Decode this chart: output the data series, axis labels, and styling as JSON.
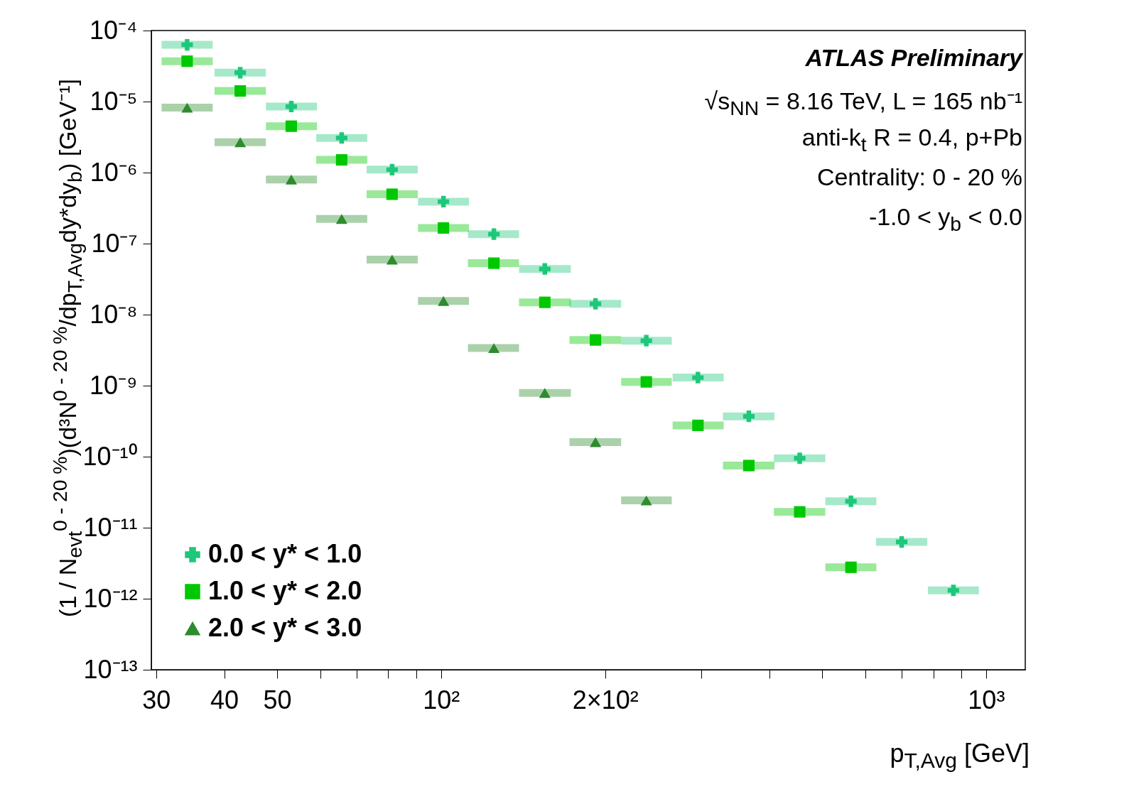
{
  "chart_data": {
    "type": "scatter",
    "xlabel": "p$_{T,Avg}$ [GeV]",
    "ylabel": "(1 / N$_{evt}$$^{0 - 20 %}$)(d³N$^{0 - 20 %}$/dp$_{T,Avg}$dy*dy$_{b}$) [GeV⁻¹]",
    "annotations": [
      "ATLAS Preliminary",
      "√s$_{NN}$ = 8.16 TeV, L = 165 nb⁻¹",
      "anti-k$_{t}$ R = 0.4, p+Pb",
      "Centrality: 0 - 20 %",
      "-1.0 < y$_{b}$ < 0.0"
    ],
    "log": "xy",
    "grid": false,
    "legend": "bottom left",
    "x": [
      34.2,
      42.8,
      53.1,
      65.7,
      81.3,
      101,
      125,
      155,
      192,
      238,
      296,
      367,
      455,
      565,
      700,
      871
    ],
    "xlim": [
      29.4,
      1180
    ],
    "ylim": [
      1e-13,
      0.0001
    ],
    "xticks": [
      30,
      40,
      50,
      {
        "value": 60,
        "label": null
      },
      {
        "value": 70,
        "label": null
      },
      {
        "value": 80,
        "label": null
      },
      {
        "value": 90,
        "label": null
      },
      {
        "value": 100,
        "label": "10²"
      },
      {
        "value": 200,
        "label": "2×10²"
      },
      {
        "value": 300,
        "label": null
      },
      {
        "value": 400,
        "label": null
      },
      {
        "value": 500,
        "label": null
      },
      {
        "value": 600,
        "label": null
      },
      {
        "value": 700,
        "label": null
      },
      {
        "value": 800,
        "label": null
      },
      {
        "value": 900,
        "label": null
      },
      {
        "value": 1000,
        "label": "10³"
      }
    ],
    "yticks": [
      {
        "value": 1e-13,
        "label": "10⁻¹³"
      },
      {
        "value": 1e-12,
        "label": "10⁻¹²"
      },
      {
        "value": 1e-11,
        "label": "10⁻¹¹"
      },
      {
        "value": 1e-10,
        "label": "10⁻¹⁰"
      },
      {
        "value": 1e-09,
        "label": "10⁻⁹"
      },
      {
        "value": 1e-08,
        "label": "10⁻⁸"
      },
      {
        "value": 1e-07,
        "label": "10⁻⁷"
      },
      {
        "value": 1e-06,
        "label": "10⁻⁶"
      },
      {
        "value": 1e-05,
        "label": "10⁻⁵"
      },
      {
        "value": 0.0001,
        "label": "10⁻⁴"
      }
    ],
    "series": [
      {
        "name": "0.0 < y* < 1.0",
        "color": "#1ec77a",
        "marker": "cross",
        "values": [
          6.3e-05,
          2.55e-05,
          8.5e-06,
          3.07e-06,
          1.1e-06,
          3.9e-07,
          1.36e-07,
          4.4e-08,
          1.42e-08,
          4.3e-09,
          1.3e-09,
          3.7e-10,
          9.5e-11,
          2.36e-11,
          6.3e-12,
          1.31e-12
        ],
        "xerrors": [
          [
            30.7,
            38.1
          ],
          [
            38.4,
            47.7
          ],
          [
            47.7,
            59.2
          ],
          [
            59.0,
            73.2
          ],
          [
            73.0,
            90.6
          ],
          [
            90.7,
            112.5
          ],
          [
            112,
            139
          ],
          [
            139,
            173
          ],
          [
            172,
            214
          ],
          [
            214,
            265
          ],
          [
            266,
            330
          ],
          [
            329,
            409
          ],
          [
            408,
            507
          ],
          [
            507,
            629
          ],
          [
            628,
            780
          ],
          [
            782,
            970
          ]
        ]
      },
      {
        "name": "1.0 < y* < 2.0",
        "color": "#00c800",
        "marker": "square",
        "values": [
          3.7e-05,
          1.41e-05,
          4.5e-06,
          1.51e-06,
          4.96e-07,
          1.66e-07,
          5.3e-08,
          1.49e-08,
          4.4e-09,
          1.13e-09,
          2.76e-10,
          7.5e-11,
          1.67e-11,
          2.77e-12,
          null,
          null
        ],
        "xerrors": [
          [
            30.7,
            38.1
          ],
          [
            38.4,
            47.7
          ],
          [
            47.7,
            59.2
          ],
          [
            59.0,
            73.2
          ],
          [
            73.0,
            90.6
          ],
          [
            90.7,
            112.5
          ],
          [
            112,
            139
          ],
          [
            139,
            173
          ],
          [
            172,
            214
          ],
          [
            214,
            265
          ],
          [
            266,
            330
          ],
          [
            329,
            409
          ],
          [
            408,
            507
          ],
          [
            507,
            629
          ],
          null,
          null
        ]
      },
      {
        "name": "2.0 < y* < 3.0",
        "color": "#2e8b2e",
        "marker": "triangle",
        "values": [
          8.2e-06,
          2.67e-06,
          8e-07,
          2.23e-07,
          5.96e-08,
          1.56e-08,
          3.38e-09,
          7.9e-10,
          1.6e-10,
          2.42e-11,
          null,
          null,
          null,
          null,
          null,
          null
        ],
        "xerrors": [
          [
            30.7,
            38.1
          ],
          [
            38.4,
            47.7
          ],
          [
            47.7,
            59.2
          ],
          [
            59.0,
            73.2
          ],
          [
            73.0,
            90.6
          ],
          [
            90.7,
            112.5
          ],
          [
            112,
            139
          ],
          [
            139,
            173
          ],
          [
            172,
            214
          ],
          [
            214,
            265
          ],
          null,
          null,
          null,
          null,
          null,
          null
        ]
      }
    ]
  }
}
